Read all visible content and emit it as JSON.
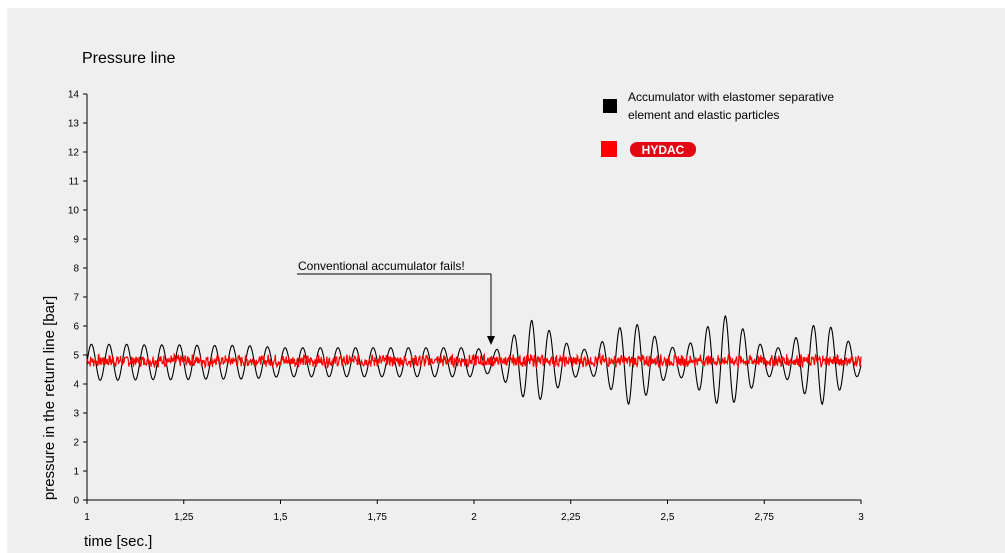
{
  "chart_data": {
    "type": "line",
    "title": "Pressure line",
    "xlabel": "time [sec.]",
    "ylabel": "pressure in the return line [bar]",
    "xlim": [
      1,
      3
    ],
    "ylim": [
      0,
      14
    ],
    "x_ticks": [
      "1",
      "1,25",
      "1,5",
      "1,75",
      "2",
      "2,25",
      "2,5",
      "2,75",
      "3"
    ],
    "x_tick_values": [
      1,
      1.25,
      1.5,
      1.75,
      2,
      2.25,
      2.5,
      2.75,
      3
    ],
    "y_ticks": [
      "0",
      "1",
      "2",
      "3",
      "4",
      "5",
      "6",
      "7",
      "8",
      "9",
      "10",
      "11",
      "12",
      "13",
      "14"
    ],
    "y_tick_values": [
      0,
      1,
      2,
      3,
      4,
      5,
      6,
      7,
      8,
      9,
      10,
      11,
      12,
      13,
      14
    ],
    "grid": false,
    "legend_position": "top-right",
    "legend": [
      {
        "label": "Accumulator with elastomer separative element and elastic particles",
        "label_lines": [
          "Accumulator with elastomer separative",
          "element and elastic particles"
        ],
        "color": "#000000"
      },
      {
        "label": "HYDAC",
        "color": "#ff0000",
        "logo": true
      }
    ],
    "annotation": {
      "text": "Conventional accumulator fails!",
      "x": 2.05,
      "y": 5.0
    },
    "series": [
      {
        "name": "Accumulator with elastomer separative element and elastic particles",
        "color": "#000000",
        "x": [
          1.0,
          1.05,
          1.1,
          1.15,
          1.2,
          1.25,
          1.3,
          1.35,
          1.4,
          1.45,
          1.5,
          1.55,
          1.6,
          1.65,
          1.7,
          1.75,
          1.8,
          1.85,
          1.9,
          1.95,
          2.0,
          2.05,
          2.1,
          2.15,
          2.2,
          2.25,
          2.3,
          2.35,
          2.4,
          2.45,
          2.5,
          2.55,
          2.6,
          2.65,
          2.7,
          2.75,
          2.8,
          2.85,
          2.9,
          2.95,
          3.0
        ],
        "amplitude": [
          0.62,
          0.62,
          0.62,
          0.6,
          0.6,
          0.6,
          0.58,
          0.58,
          0.58,
          0.55,
          0.5,
          0.5,
          0.5,
          0.5,
          0.5,
          0.5,
          0.5,
          0.5,
          0.5,
          0.5,
          0.5,
          0.35,
          0.9,
          1.45,
          1.05,
          0.55,
          0.4,
          0.9,
          1.45,
          1.1,
          0.5,
          0.55,
          1.2,
          1.6,
          1.1,
          0.5,
          0.5,
          1.05,
          1.45,
          0.9,
          0.4
        ],
        "center": 4.75,
        "oscillation_period_sec": 0.0455
      },
      {
        "name": "HYDAC",
        "color": "#ff0000",
        "center": 4.8,
        "noise_amplitude": 0.18,
        "x_range": [
          1.0,
          3.0
        ]
      }
    ]
  }
}
